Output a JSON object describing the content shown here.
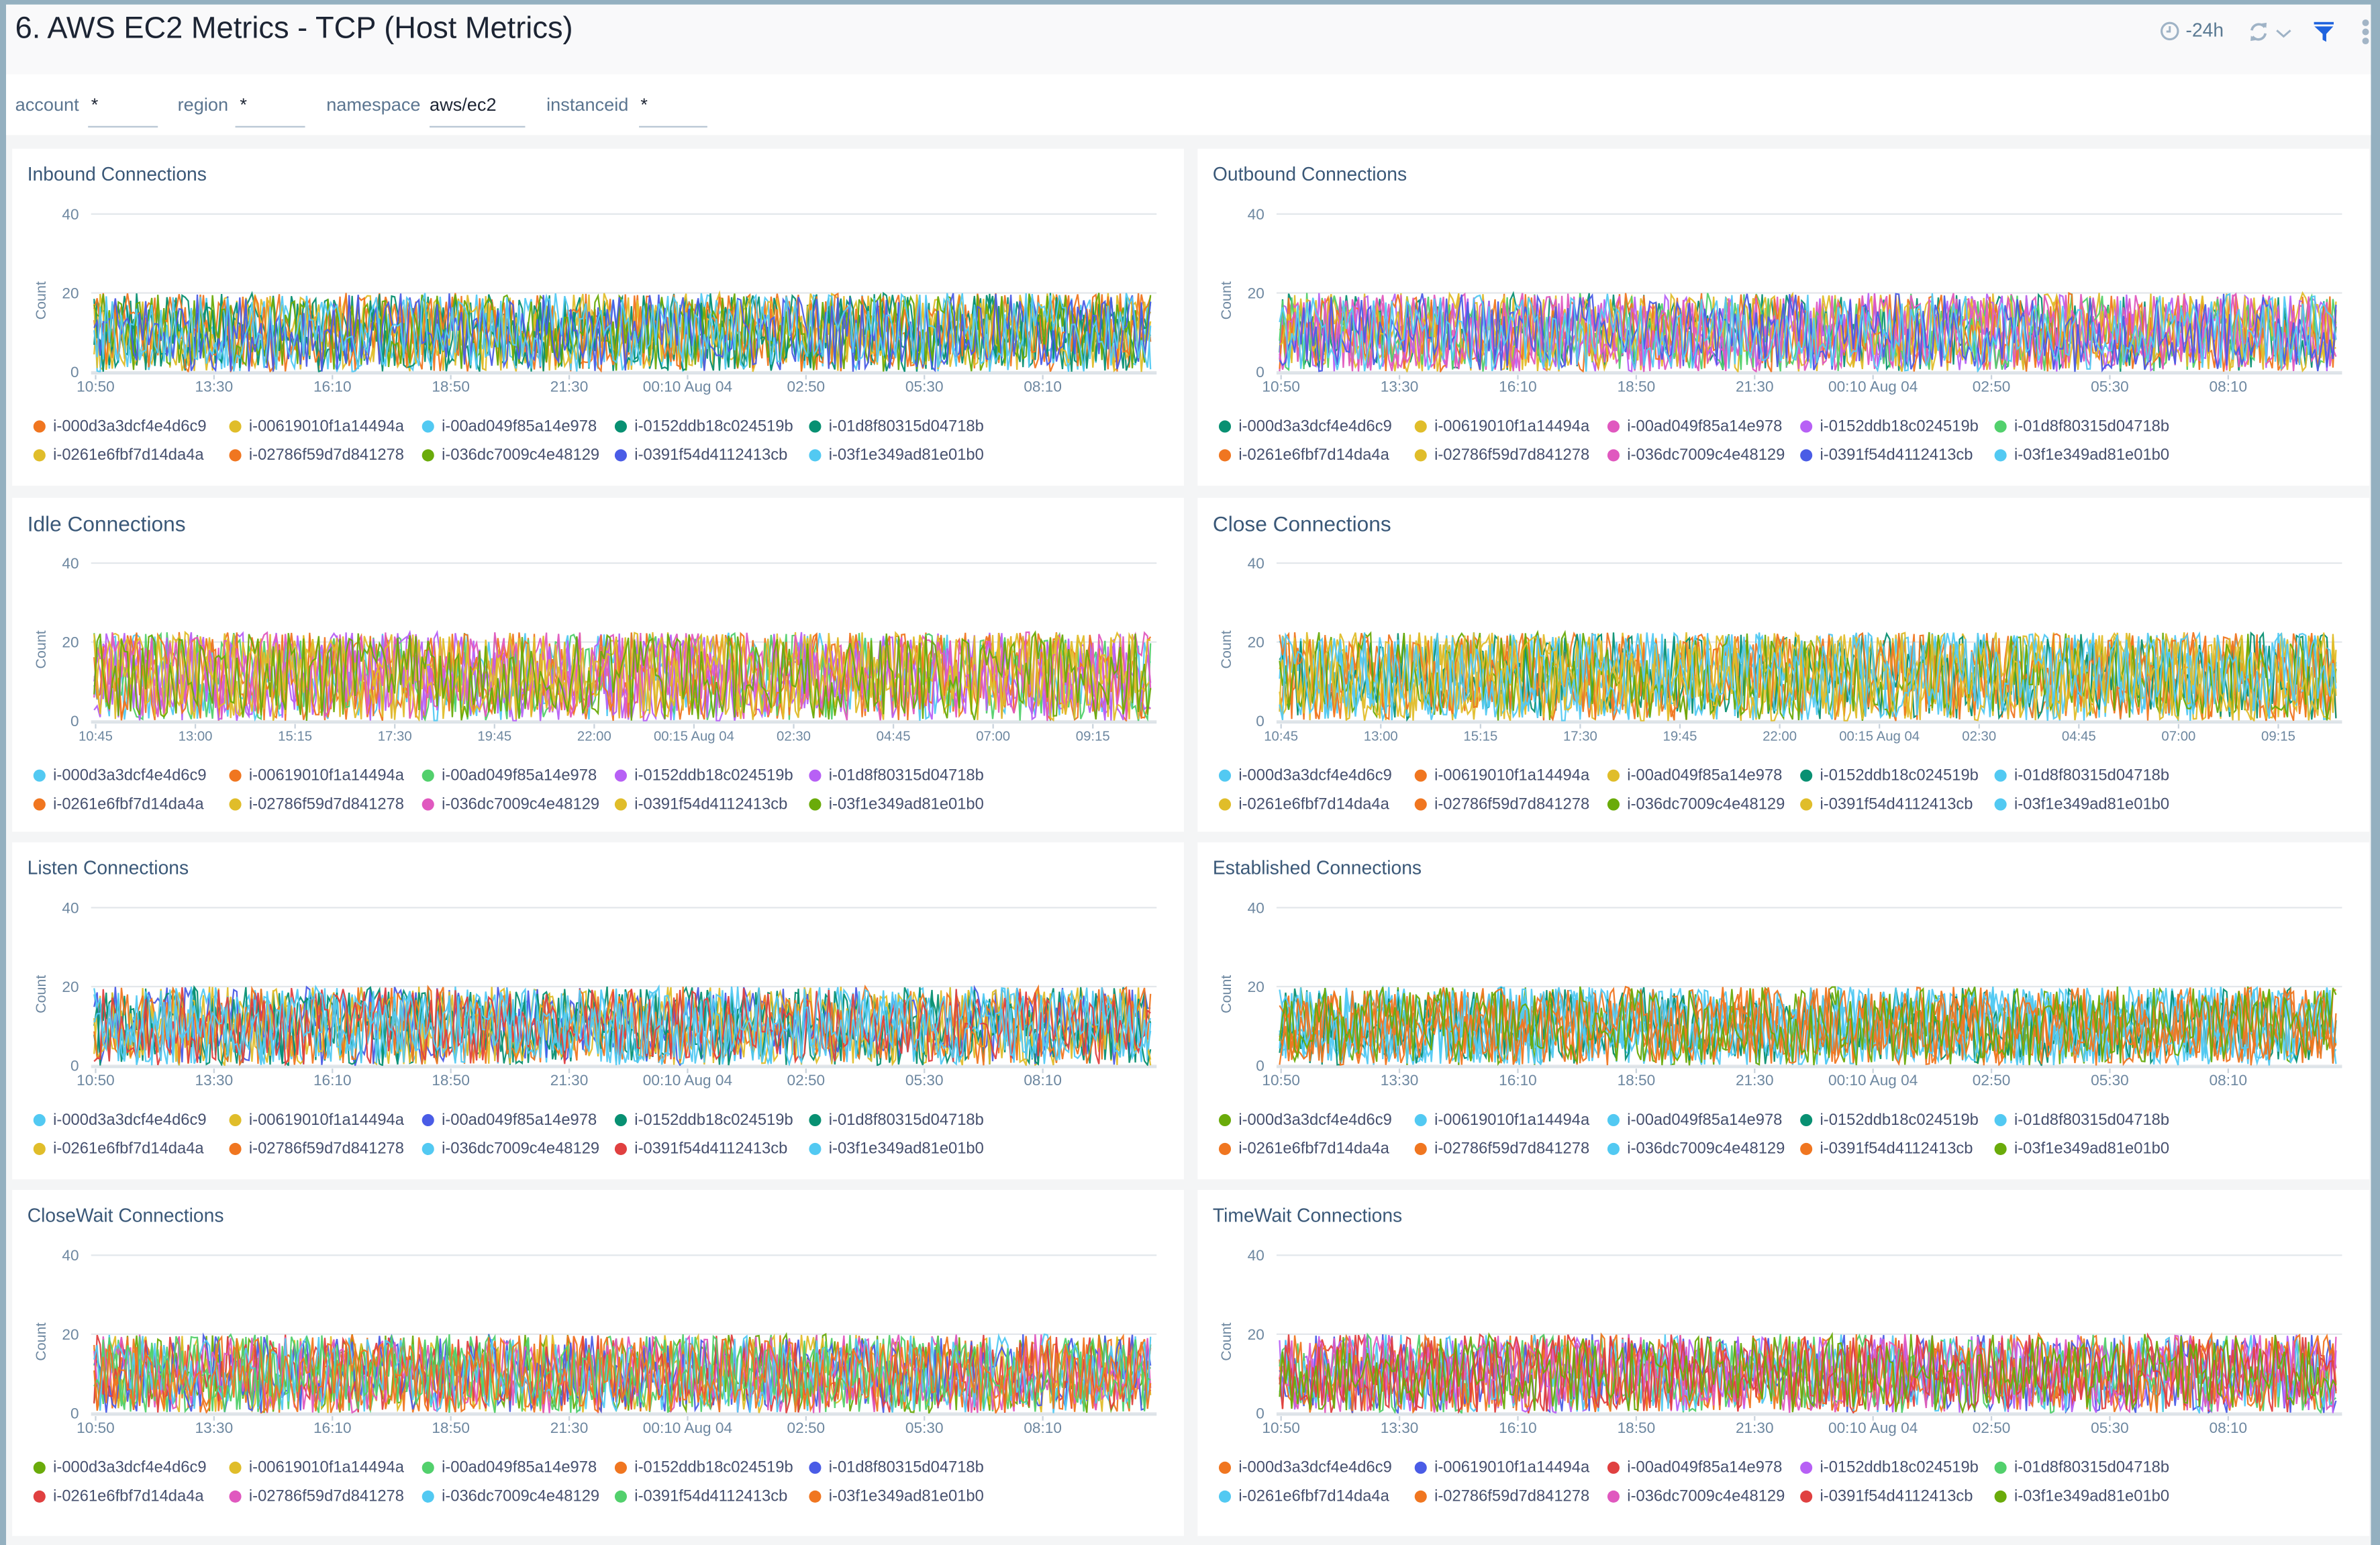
{
  "header": {
    "title": "6. AWS EC2 Metrics - TCP (Host Metrics)",
    "time_range": "-24h",
    "icons": [
      "clock-icon",
      "refresh-icon",
      "chevron-down-icon",
      "filter-icon",
      "more-vertical-icon"
    ],
    "filter_color": "#1f63de"
  },
  "filters": [
    {
      "label": "account",
      "value": "*"
    },
    {
      "label": "region",
      "value": "*"
    },
    {
      "label": "namespace",
      "value": "aws/ec2"
    },
    {
      "label": "instanceid",
      "value": "*"
    }
  ],
  "chart_data": [
    {
      "type": "line",
      "title": "Inbound Connections",
      "ylabel": "Count",
      "ylim": [
        0,
        40
      ],
      "yticks": [
        "40",
        "20",
        "0"
      ],
      "xticks": [
        "10:50",
        "13:30",
        "16:10",
        "18:50",
        "21:30",
        "00:10 Aug 04",
        "02:50",
        "05:30",
        "08:10"
      ],
      "grid": true,
      "legend": "bottom",
      "series": [
        {
          "name": "i-000d3a3dcf4e4d6c9",
          "color": "#f07620"
        },
        {
          "name": "i-00619010f1a14494a",
          "color": "#e0bd2a"
        },
        {
          "name": "i-00ad049f85a14e978",
          "color": "#52c9f2"
        },
        {
          "name": "i-0152ddb18c024519b",
          "color": "#089072"
        },
        {
          "name": "i-01d8f80315d04718b",
          "color": "#089072"
        },
        {
          "name": "i-0261e6fbf7d14da4a",
          "color": "#e0bd2a"
        },
        {
          "name": "i-02786f59d7d841278",
          "color": "#f07620"
        },
        {
          "name": "i-036dc7009c4e48129",
          "color": "#6aab0a"
        },
        {
          "name": "i-0391f54d4112413cb",
          "color": "#4a5ce6"
        },
        {
          "name": "i-03f1e349ad81e01b0",
          "color": "#52c9f2"
        }
      ]
    },
    {
      "type": "line",
      "title": "Outbound Connections",
      "ylabel": "Count",
      "ylim": [
        0,
        40
      ],
      "yticks": [
        "40",
        "20",
        "0"
      ],
      "xticks": [
        "10:50",
        "13:30",
        "16:10",
        "18:50",
        "21:30",
        "00:10 Aug 04",
        "02:50",
        "05:30",
        "08:10"
      ],
      "grid": true,
      "legend": "bottom",
      "series": [
        {
          "name": "i-000d3a3dcf4e4d6c9",
          "color": "#089072"
        },
        {
          "name": "i-00619010f1a14494a",
          "color": "#e0bd2a"
        },
        {
          "name": "i-00ad049f85a14e978",
          "color": "#e058bf"
        },
        {
          "name": "i-0152ddb18c024519b",
          "color": "#b760f5"
        },
        {
          "name": "i-01d8f80315d04718b",
          "color": "#52d06c"
        },
        {
          "name": "i-0261e6fbf7d14da4a",
          "color": "#f07620"
        },
        {
          "name": "i-02786f59d7d841278",
          "color": "#e0bd2a"
        },
        {
          "name": "i-036dc7009c4e48129",
          "color": "#e058bf"
        },
        {
          "name": "i-0391f54d4112413cb",
          "color": "#4a5ce6"
        },
        {
          "name": "i-03f1e349ad81e01b0",
          "color": "#52c9f2"
        }
      ]
    },
    {
      "type": "line",
      "title": "Idle Connections",
      "ylabel": "Count",
      "ylim": [
        0,
        40
      ],
      "yticks": [
        "40",
        "20",
        "0"
      ],
      "xticks": [
        "10:45",
        "13:00",
        "15:15",
        "17:30",
        "19:45",
        "22:00",
        "00:15 Aug 04",
        "02:30",
        "04:45",
        "07:00",
        "09:15"
      ],
      "grid": true,
      "legend": "bottom",
      "series": [
        {
          "name": "i-000d3a3dcf4e4d6c9",
          "color": "#52c9f2"
        },
        {
          "name": "i-00619010f1a14494a",
          "color": "#f07620"
        },
        {
          "name": "i-00ad049f85a14e978",
          "color": "#52d06c"
        },
        {
          "name": "i-0152ddb18c024519b",
          "color": "#b760f5"
        },
        {
          "name": "i-01d8f80315d04718b",
          "color": "#b760f5"
        },
        {
          "name": "i-0261e6fbf7d14da4a",
          "color": "#f07620"
        },
        {
          "name": "i-02786f59d7d841278",
          "color": "#e0bd2a"
        },
        {
          "name": "i-036dc7009c4e48129",
          "color": "#e058bf"
        },
        {
          "name": "i-0391f54d4112413cb",
          "color": "#e0bd2a"
        },
        {
          "name": "i-03f1e349ad81e01b0",
          "color": "#6aab0a"
        }
      ]
    },
    {
      "type": "line",
      "title": "Close Connections",
      "ylabel": "Count",
      "ylim": [
        0,
        40
      ],
      "yticks": [
        "40",
        "20",
        "0"
      ],
      "xticks": [
        "10:45",
        "13:00",
        "15:15",
        "17:30",
        "19:45",
        "22:00",
        "00:15 Aug 04",
        "02:30",
        "04:45",
        "07:00",
        "09:15"
      ],
      "grid": true,
      "legend": "bottom",
      "series": [
        {
          "name": "i-000d3a3dcf4e4d6c9",
          "color": "#52c9f2"
        },
        {
          "name": "i-00619010f1a14494a",
          "color": "#f07620"
        },
        {
          "name": "i-00ad049f85a14e978",
          "color": "#e0bd2a"
        },
        {
          "name": "i-0152ddb18c024519b",
          "color": "#089072"
        },
        {
          "name": "i-01d8f80315d04718b",
          "color": "#52c9f2"
        },
        {
          "name": "i-0261e6fbf7d14da4a",
          "color": "#e0bd2a"
        },
        {
          "name": "i-02786f59d7d841278",
          "color": "#f07620"
        },
        {
          "name": "i-036dc7009c4e48129",
          "color": "#6aab0a"
        },
        {
          "name": "i-0391f54d4112413cb",
          "color": "#e0bd2a"
        },
        {
          "name": "i-03f1e349ad81e01b0",
          "color": "#52c9f2"
        }
      ]
    },
    {
      "type": "line",
      "title": "Listen Connections",
      "ylabel": "Count",
      "ylim": [
        0,
        40
      ],
      "yticks": [
        "40",
        "20",
        "0"
      ],
      "xticks": [
        "10:50",
        "13:30",
        "16:10",
        "18:50",
        "21:30",
        "00:10 Aug 04",
        "02:50",
        "05:30",
        "08:10"
      ],
      "grid": true,
      "legend": "bottom",
      "series": [
        {
          "name": "i-000d3a3dcf4e4d6c9",
          "color": "#52c9f2"
        },
        {
          "name": "i-00619010f1a14494a",
          "color": "#e0bd2a"
        },
        {
          "name": "i-00ad049f85a14e978",
          "color": "#4a5ce6"
        },
        {
          "name": "i-0152ddb18c024519b",
          "color": "#089072"
        },
        {
          "name": "i-01d8f80315d04718b",
          "color": "#089072"
        },
        {
          "name": "i-0261e6fbf7d14da4a",
          "color": "#e0bd2a"
        },
        {
          "name": "i-02786f59d7d841278",
          "color": "#f07620"
        },
        {
          "name": "i-036dc7009c4e48129",
          "color": "#52c9f2"
        },
        {
          "name": "i-0391f54d4112413cb",
          "color": "#e04040"
        },
        {
          "name": "i-03f1e349ad81e01b0",
          "color": "#52c9f2"
        }
      ]
    },
    {
      "type": "line",
      "title": "Established Connections",
      "ylabel": "Count",
      "ylim": [
        0,
        40
      ],
      "yticks": [
        "40",
        "20",
        "0"
      ],
      "xticks": [
        "10:50",
        "13:30",
        "16:10",
        "18:50",
        "21:30",
        "00:10 Aug 04",
        "02:50",
        "05:30",
        "08:10"
      ],
      "grid": true,
      "legend": "bottom",
      "series": [
        {
          "name": "i-000d3a3dcf4e4d6c9",
          "color": "#6aab0a"
        },
        {
          "name": "i-00619010f1a14494a",
          "color": "#52c9f2"
        },
        {
          "name": "i-00ad049f85a14e978",
          "color": "#52c9f2"
        },
        {
          "name": "i-0152ddb18c024519b",
          "color": "#089072"
        },
        {
          "name": "i-01d8f80315d04718b",
          "color": "#52c9f2"
        },
        {
          "name": "i-0261e6fbf7d14da4a",
          "color": "#f07620"
        },
        {
          "name": "i-02786f59d7d841278",
          "color": "#f07620"
        },
        {
          "name": "i-036dc7009c4e48129",
          "color": "#52c9f2"
        },
        {
          "name": "i-0391f54d4112413cb",
          "color": "#f07620"
        },
        {
          "name": "i-03f1e349ad81e01b0",
          "color": "#6aab0a"
        }
      ]
    },
    {
      "type": "line",
      "title": "CloseWait Connections",
      "ylabel": "Count",
      "ylim": [
        0,
        40
      ],
      "yticks": [
        "40",
        "20",
        "0"
      ],
      "xticks": [
        "10:50",
        "13:30",
        "16:10",
        "18:50",
        "21:30",
        "00:10 Aug 04",
        "02:50",
        "05:30",
        "08:10"
      ],
      "grid": true,
      "legend": "bottom",
      "series": [
        {
          "name": "i-000d3a3dcf4e4d6c9",
          "color": "#6aab0a"
        },
        {
          "name": "i-00619010f1a14494a",
          "color": "#e0bd2a"
        },
        {
          "name": "i-00ad049f85a14e978",
          "color": "#52d06c"
        },
        {
          "name": "i-0152ddb18c024519b",
          "color": "#f07620"
        },
        {
          "name": "i-01d8f80315d04718b",
          "color": "#4a5ce6"
        },
        {
          "name": "i-0261e6fbf7d14da4a",
          "color": "#e04040"
        },
        {
          "name": "i-02786f59d7d841278",
          "color": "#e058bf"
        },
        {
          "name": "i-036dc7009c4e48129",
          "color": "#52c9f2"
        },
        {
          "name": "i-0391f54d4112413cb",
          "color": "#52d06c"
        },
        {
          "name": "i-03f1e349ad81e01b0",
          "color": "#f07620"
        }
      ]
    },
    {
      "type": "line",
      "title": "TimeWait Connections",
      "ylabel": "Count",
      "ylim": [
        0,
        40
      ],
      "yticks": [
        "40",
        "20",
        "0"
      ],
      "xticks": [
        "10:50",
        "13:30",
        "16:10",
        "18:50",
        "21:30",
        "00:10 Aug 04",
        "02:50",
        "05:30",
        "08:10"
      ],
      "grid": true,
      "legend": "bottom",
      "series": [
        {
          "name": "i-000d3a3dcf4e4d6c9",
          "color": "#f07620"
        },
        {
          "name": "i-00619010f1a14494a",
          "color": "#4a5ce6"
        },
        {
          "name": "i-00ad049f85a14e978",
          "color": "#e04040"
        },
        {
          "name": "i-0152ddb18c024519b",
          "color": "#b760f5"
        },
        {
          "name": "i-01d8f80315d04718b",
          "color": "#52d06c"
        },
        {
          "name": "i-0261e6fbf7d14da4a",
          "color": "#52c9f2"
        },
        {
          "name": "i-02786f59d7d841278",
          "color": "#f07620"
        },
        {
          "name": "i-036dc7009c4e48129",
          "color": "#e058bf"
        },
        {
          "name": "i-0391f54d4112413cb",
          "color": "#e04040"
        },
        {
          "name": "i-03f1e349ad81e01b0",
          "color": "#6aab0a"
        }
      ]
    }
  ]
}
